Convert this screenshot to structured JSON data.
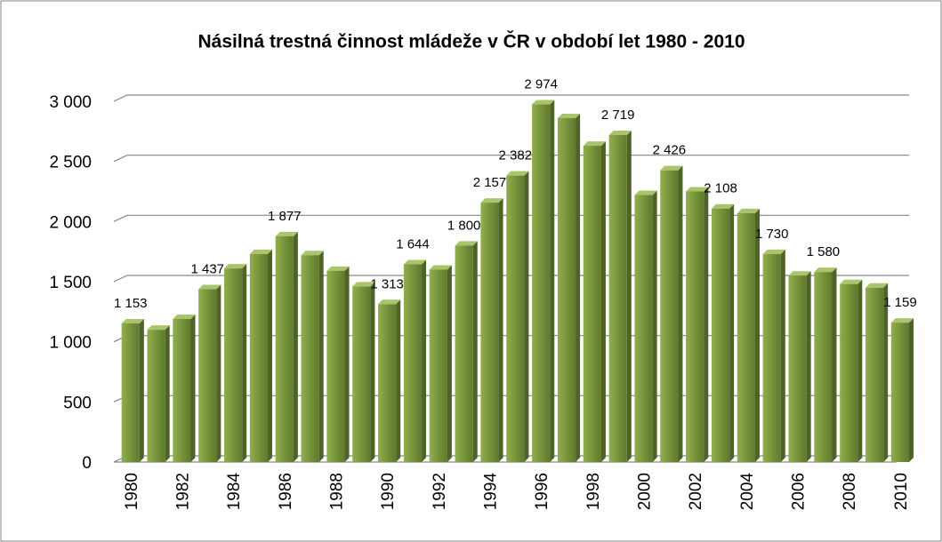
{
  "chart_data": {
    "type": "bar",
    "title": "Násilná trestná činnost mládeže v ČR v období let 1980 - 2010",
    "categories": [
      "1980",
      null,
      "1982",
      null,
      "1984",
      null,
      "1986",
      null,
      "1988",
      null,
      "1990",
      null,
      "1992",
      null,
      "1994",
      null,
      "1996",
      null,
      "1998",
      null,
      "2000",
      null,
      "2002",
      null,
      "2004",
      null,
      "2006",
      null,
      "2008",
      null,
      "2010"
    ],
    "values": [
      1153,
      1100,
      1190,
      1437,
      1610,
      1730,
      1877,
      1720,
      1590,
      1460,
      1313,
      1644,
      1600,
      1800,
      2157,
      2382,
      2974,
      2860,
      2630,
      2719,
      2220,
      2426,
      2250,
      2108,
      2070,
      1730,
      1550,
      1580,
      1480,
      1450,
      1159
    ],
    "value_labels": [
      "1 153",
      null,
      null,
      "1 437",
      null,
      null,
      "1 877",
      null,
      null,
      null,
      "1 313",
      "1 644",
      null,
      "1 800",
      "2 157",
      "2 382",
      "2 974",
      null,
      null,
      "2 719",
      null,
      "2 426",
      null,
      "2 108",
      null,
      "1 730",
      null,
      "1 580",
      null,
      null,
      "1 159"
    ],
    "color": "#77933c",
    "ylim": [
      0,
      3000
    ],
    "yticks": [
      0,
      500,
      {
        "value": 1000,
        "label": "1 000"
      },
      {
        "value": 1500,
        "label": "1 500"
      },
      {
        "value": 2000,
        "label": "2 000"
      },
      {
        "value": 2500,
        "label": "2 500"
      },
      {
        "value": 3000,
        "label": "3 000"
      }
    ],
    "grid": true
  }
}
